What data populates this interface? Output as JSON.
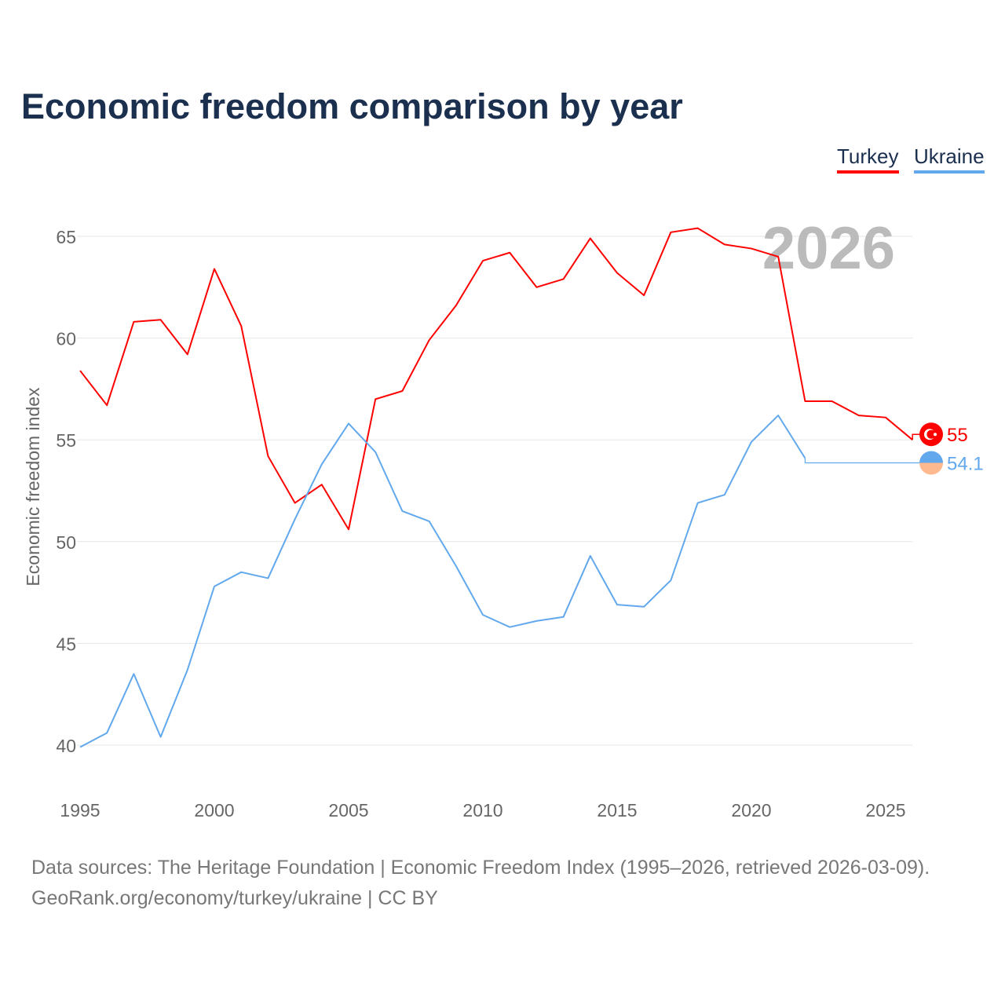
{
  "chart_data": {
    "type": "line",
    "title": "Economic freedom comparison by year",
    "ylabel": "Economic freedom index",
    "xlabel": "",
    "ylim": [
      40,
      65
    ],
    "xlim": [
      1995,
      2026
    ],
    "yticks": [
      40,
      45,
      50,
      55,
      60,
      65
    ],
    "xticks": [
      1995,
      2000,
      2005,
      2010,
      2015,
      2020,
      2025
    ],
    "grid": true,
    "legend_placement": "top-right",
    "year_watermark": "2026",
    "x": [
      1995,
      1996,
      1997,
      1998,
      1999,
      2000,
      2001,
      2002,
      2003,
      2004,
      2005,
      2006,
      2007,
      2008,
      2009,
      2010,
      2011,
      2012,
      2013,
      2014,
      2015,
      2016,
      2017,
      2018,
      2019,
      2020,
      2021,
      2022,
      2023,
      2024,
      2025,
      2026
    ],
    "series": [
      {
        "name": "Turkey",
        "color": "#ff0000",
        "end_label": "55",
        "values": [
          58.4,
          56.7,
          60.8,
          60.9,
          59.2,
          63.4,
          60.6,
          54.2,
          51.9,
          52.8,
          50.6,
          57.0,
          57.4,
          59.9,
          61.6,
          63.8,
          64.2,
          62.5,
          62.9,
          64.9,
          63.2,
          62.1,
          65.2,
          65.4,
          64.6,
          64.4,
          64.0,
          56.9,
          56.9,
          56.2,
          56.1,
          55.0
        ]
      },
      {
        "name": "Ukraine",
        "color": "#62a8ec",
        "end_label": "54.1",
        "values": [
          39.9,
          40.6,
          43.5,
          40.4,
          43.7,
          47.8,
          48.5,
          48.2,
          51.1,
          53.8,
          55.8,
          54.4,
          51.5,
          51.0,
          48.8,
          46.4,
          45.8,
          46.1,
          46.3,
          49.3,
          46.9,
          46.8,
          48.1,
          51.9,
          52.3,
          54.9,
          56.2,
          54.1,
          null,
          null,
          null,
          null
        ],
        "carry_forward": 54.1
      }
    ]
  },
  "source_line1": "Data sources: The Heritage Foundation | Economic Freedom Index (1995–2026, retrieved 2026-03-09).",
  "source_line2": "GeoRank.org/economy/turkey/ukraine | CC BY"
}
